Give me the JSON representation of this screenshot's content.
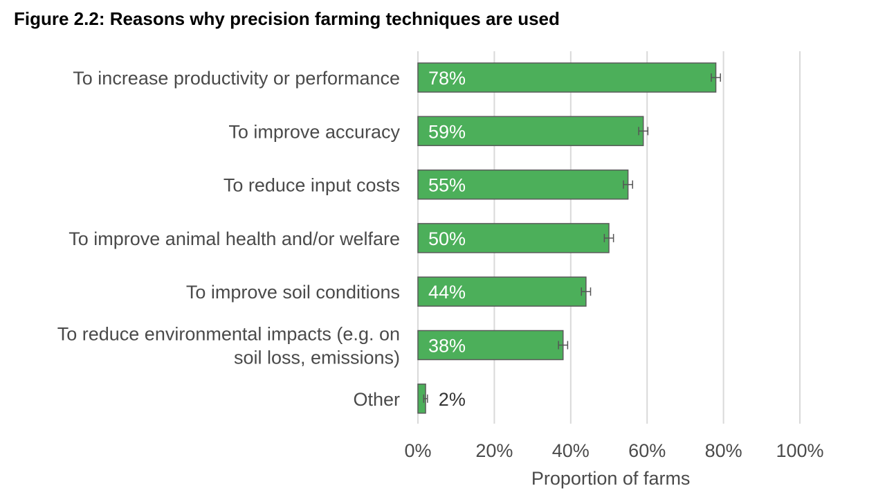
{
  "title": "Figure 2.2: Reasons why precision farming techniques are used",
  "colors": {
    "bar_fill": "#4caf5a",
    "bar_stroke": "#5a5a5a",
    "grid": "#d9d9d9",
    "error_bar": "#555555"
  },
  "chart_data": {
    "type": "bar",
    "orientation": "horizontal",
    "categories": [
      [
        "To increase productivity or performance"
      ],
      [
        "To improve accuracy"
      ],
      [
        "To reduce input costs"
      ],
      [
        "To improve animal health and/or welfare"
      ],
      [
        "To improve soil conditions"
      ],
      [
        "To reduce environmental impacts (e.g. on",
        "soil loss, emissions)"
      ],
      [
        "Other"
      ]
    ],
    "values": [
      78,
      59,
      55,
      50,
      44,
      38,
      2
    ],
    "data_labels": [
      "78%",
      "59%",
      "55%",
      "50%",
      "44%",
      "38%",
      "2%"
    ],
    "error_margin": [
      1.2,
      1.2,
      1.2,
      1.2,
      1.2,
      1.2,
      0.5
    ],
    "xlabel": "Proportion of farms",
    "ylabel": "",
    "xlim": [
      0,
      100
    ],
    "x_ticks": [
      0,
      20,
      40,
      60,
      80,
      100
    ],
    "x_tick_labels": [
      "0%",
      "20%",
      "40%",
      "60%",
      "80%",
      "100%"
    ],
    "grid": true,
    "legend": "none"
  }
}
